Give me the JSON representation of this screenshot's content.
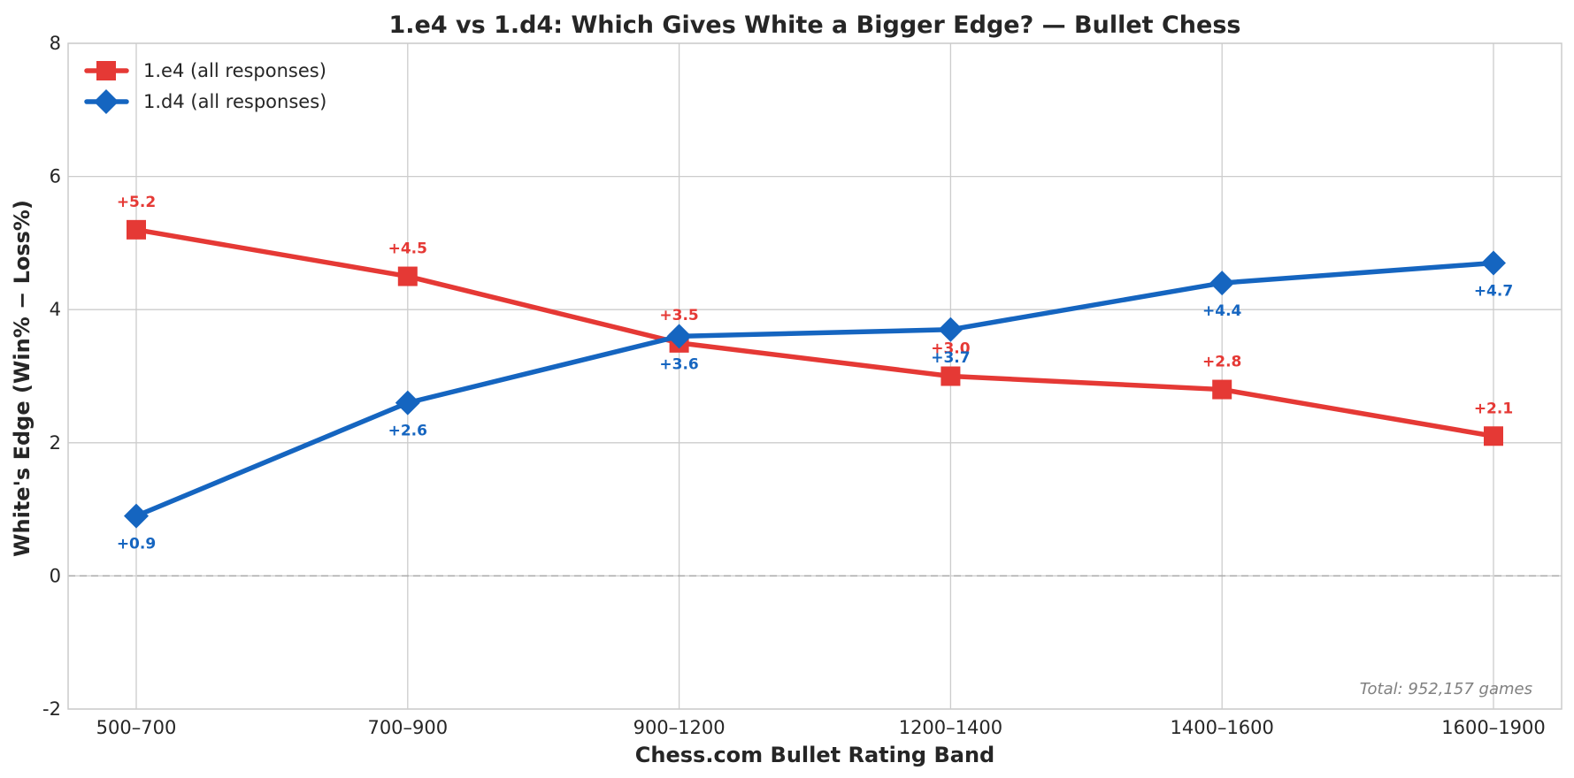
{
  "chart_data": {
    "type": "line",
    "title": "1.e4 vs 1.d4: Which Gives White a Bigger Edge? — Bullet Chess",
    "xlabel": "Chess.com Bullet Rating Band",
    "ylabel": "White's Edge (Win% − Loss%)",
    "categories": [
      "500–700",
      "700–900",
      "900–1200",
      "1200–1400",
      "1400–1600",
      "1600–1900"
    ],
    "ylim": [
      -2,
      8
    ],
    "yticks": [
      -2,
      0,
      2,
      4,
      6,
      8
    ],
    "grid": true,
    "legend_position": "top-left",
    "reference_line": 0,
    "series": [
      {
        "name": "1.e4 (all responses)",
        "marker": "square",
        "color": "#e53935",
        "values": [
          5.2,
          4.5,
          3.5,
          3.0,
          2.8,
          2.1
        ],
        "labels": [
          "+5.2",
          "+4.5",
          "+3.5",
          "+3.0",
          "+2.8",
          "+2.1"
        ]
      },
      {
        "name": "1.d4 (all responses)",
        "marker": "diamond",
        "color": "#1565c0",
        "values": [
          0.9,
          2.6,
          3.6,
          3.7,
          4.4,
          4.7
        ],
        "labels": [
          "+0.9",
          "+2.6",
          "+3.6",
          "+3.7",
          "+4.4",
          "+4.7"
        ]
      }
    ],
    "annotation": "Total: 952,157 games"
  }
}
